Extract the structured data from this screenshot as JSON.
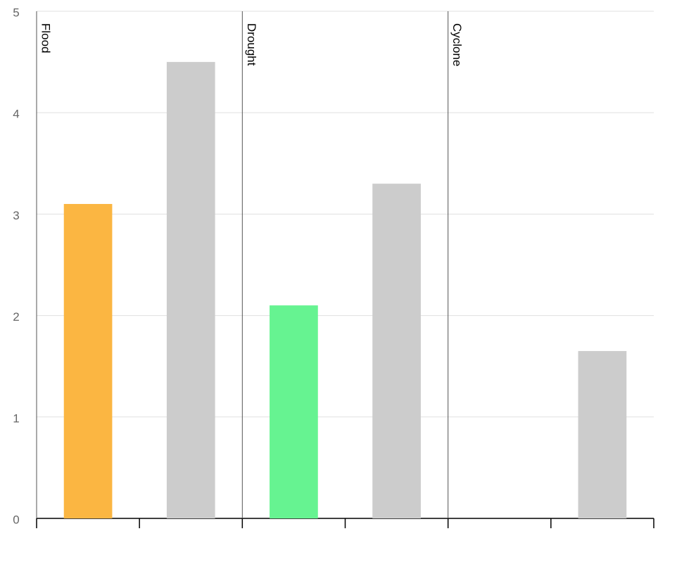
{
  "chart_data": {
    "type": "bar",
    "categories": [
      "Flood",
      "Drought",
      "Cyclone"
    ],
    "series": [
      {
        "colors": [
          "#fbb642",
          "#66f391",
          null
        ],
        "values": [
          3.1,
          2.1,
          null
        ]
      },
      {
        "color": "#cccccc",
        "values": [
          4.5,
          3.3,
          1.65
        ]
      }
    ],
    "ylim": [
      0,
      5
    ],
    "yticks": [
      0,
      1,
      2,
      3,
      4,
      5
    ],
    "grid": true
  }
}
